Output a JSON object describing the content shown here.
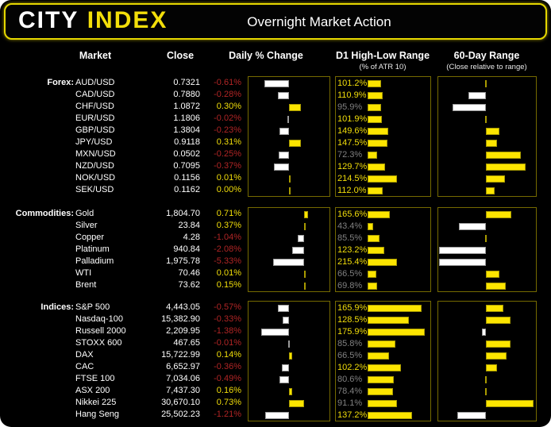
{
  "header": {
    "logo_city": "CITY",
    "logo_index": "INDEX",
    "title": "Overnight Market Action"
  },
  "columns": {
    "market": "Market",
    "close": "Close",
    "daily": "Daily % Change",
    "d1": "D1 High-Low Range",
    "d1_sub": "(% of ATR 10)",
    "r60": "60-Day Range",
    "r60_sub": "(Close relative to range)"
  },
  "colors": {
    "accent_yellow": "#f2de0a",
    "bar_yellow": "#fce500",
    "bar_white": "#ffffff",
    "negative_red": "#b02525",
    "muted_gray": "#808080",
    "panel_border": "#756a00",
    "header_border": "#e5d700"
  },
  "sections": [
    {
      "label": "Forex:",
      "rows": [
        {
          "market": "AUD/USD",
          "close": "0.7321",
          "change": "-0.61%",
          "change_val": -0.61,
          "d1": "101.2%",
          "d1_val": 101.2,
          "r60_val": 51
        },
        {
          "market": "CAD/USD",
          "close": "0.7880",
          "change": "-0.28%",
          "change_val": -0.28,
          "d1": "110.9%",
          "d1_val": 110.9,
          "r60_val": 32
        },
        {
          "market": "CHF/USD",
          "close": "1.0872",
          "change": "0.30%",
          "change_val": 0.3,
          "d1": "95.9%",
          "d1_val": 95.9,
          "r60_val": 15
        },
        {
          "market": "EUR/USD",
          "close": "1.1806",
          "change": "-0.02%",
          "change_val": -0.02,
          "d1": "101.9%",
          "d1_val": 101.9,
          "r60_val": 51
        },
        {
          "market": "GBP/USD",
          "close": "1.3804",
          "change": "-0.23%",
          "change_val": -0.23,
          "d1": "149.6%",
          "d1_val": 149.6,
          "r60_val": 64
        },
        {
          "market": "JPY/USD",
          "close": "0.9118",
          "change": "0.31%",
          "change_val": 0.31,
          "d1": "147.5%",
          "d1_val": 147.5,
          "r60_val": 62
        },
        {
          "market": "MXN/USD",
          "close": "0.0502",
          "change": "-0.25%",
          "change_val": -0.25,
          "d1": "72.3%",
          "d1_val": 72.3,
          "r60_val": 87
        },
        {
          "market": "NZD/USD",
          "close": "0.7095",
          "change": "-0.37%",
          "change_val": -0.37,
          "d1": "129.7%",
          "d1_val": 129.7,
          "r60_val": 92
        },
        {
          "market": "NOK/USD",
          "close": "0.1156",
          "change": "0.01%",
          "change_val": 0.01,
          "d1": "214.5%",
          "d1_val": 214.5,
          "r60_val": 70
        },
        {
          "market": "SEK/USD",
          "close": "0.1162",
          "change": "0.00%",
          "change_val": 0.0,
          "d1": "112.0%",
          "d1_val": 112.0,
          "r60_val": 59
        }
      ]
    },
    {
      "label": "Commodities:",
      "rows": [
        {
          "market": "Gold",
          "close": "1,804.70",
          "change": "0.71%",
          "change_val": 0.71,
          "d1": "165.6%",
          "d1_val": 165.6,
          "r60_val": 77
        },
        {
          "market": "Silver",
          "close": "23.84",
          "change": "0.37%",
          "change_val": 0.37,
          "d1": "43.4%",
          "d1_val": 43.4,
          "r60_val": 22
        },
        {
          "market": "Copper",
          "close": "4.28",
          "change": "-1.04%",
          "change_val": -1.04,
          "d1": "85.5%",
          "d1_val": 85.5,
          "r60_val": 50
        },
        {
          "market": "Platinum",
          "close": "940.84",
          "change": "-2.08%",
          "change_val": -2.08,
          "d1": "123.2%",
          "d1_val": 123.2,
          "r60_val": 1
        },
        {
          "market": "Palladium",
          "close": "1,975.78",
          "change": "-5.33%",
          "change_val": -5.33,
          "d1": "215.4%",
          "d1_val": 215.4,
          "r60_val": 1
        },
        {
          "market": "WTI",
          "close": "70.46",
          "change": "0.01%",
          "change_val": 0.01,
          "d1": "66.5%",
          "d1_val": 66.5,
          "r60_val": 64
        },
        {
          "market": "Brent",
          "close": "73.62",
          "change": "0.15%",
          "change_val": 0.15,
          "d1": "69.8%",
          "d1_val": 69.8,
          "r60_val": 71
        }
      ]
    },
    {
      "label": "Indices:",
      "rows": [
        {
          "market": "S&P 500",
          "close": "4,443.05",
          "change": "-0.57%",
          "change_val": -0.57,
          "d1": "165.9%",
          "d1_val": 165.9,
          "r60_val": 68
        },
        {
          "market": "Nasdaq-100",
          "close": "15,382.90",
          "change": "-0.33%",
          "change_val": -0.33,
          "d1": "128.5%",
          "d1_val": 128.5,
          "r60_val": 76
        },
        {
          "market": "Russell 2000",
          "close": "2,209.95",
          "change": "-1.38%",
          "change_val": -1.38,
          "d1": "175.9%",
          "d1_val": 175.9,
          "r60_val": 46
        },
        {
          "market": "STOXX 600",
          "close": "467.65",
          "change": "-0.01%",
          "change_val": -0.01,
          "d1": "85.8%",
          "d1_val": 85.8,
          "r60_val": 76
        },
        {
          "market": "DAX",
          "close": "15,722.99",
          "change": "0.14%",
          "change_val": 0.14,
          "d1": "66.5%",
          "d1_val": 66.5,
          "r60_val": 72
        },
        {
          "market": "CAC",
          "close": "6,652.97",
          "change": "-0.36%",
          "change_val": -0.36,
          "d1": "102.2%",
          "d1_val": 102.2,
          "r60_val": 62
        },
        {
          "market": "FTSE 100",
          "close": "7,034.06",
          "change": "-0.49%",
          "change_val": -0.49,
          "d1": "80.6%",
          "d1_val": 80.6,
          "r60_val": 50
        },
        {
          "market": "ASX 200",
          "close": "7,437.30",
          "change": "0.16%",
          "change_val": 0.16,
          "d1": "78.4%",
          "d1_val": 78.4,
          "r60_val": 50
        },
        {
          "market": "Nikkei 225",
          "close": "30,670.10",
          "change": "0.73%",
          "change_val": 0.73,
          "d1": "91.1%",
          "d1_val": 91.1,
          "r60_val": 100
        },
        {
          "market": "Hang Seng",
          "close": "25,502.23",
          "change": "-1.21%",
          "change_val": -1.21,
          "d1": "137.2%",
          "d1_val": 137.2,
          "r60_val": 20
        }
      ]
    }
  ],
  "chart_data": [
    {
      "type": "bar",
      "title": "Daily % Change",
      "orientation": "horizontal",
      "unit": "percent",
      "note": "negative bars white (left of zero), positive bars yellow (right of zero)",
      "groups": [
        {
          "section": "Forex",
          "categories": [
            "AUD/USD",
            "CAD/USD",
            "CHF/USD",
            "EUR/USD",
            "GBP/USD",
            "JPY/USD",
            "MXN/USD",
            "NZD/USD",
            "NOK/USD",
            "SEK/USD"
          ],
          "values": [
            -0.61,
            -0.28,
            0.3,
            -0.02,
            -0.23,
            0.31,
            -0.25,
            -0.37,
            0.01,
            0.0
          ]
        },
        {
          "section": "Commodities",
          "categories": [
            "Gold",
            "Silver",
            "Copper",
            "Platinum",
            "Palladium",
            "WTI",
            "Brent"
          ],
          "values": [
            0.71,
            0.37,
            -1.04,
            -2.08,
            -5.33,
            0.01,
            0.15
          ]
        },
        {
          "section": "Indices",
          "categories": [
            "S&P 500",
            "Nasdaq-100",
            "Russell 2000",
            "STOXX 600",
            "DAX",
            "CAC",
            "FTSE 100",
            "ASX 200",
            "Nikkei 225",
            "Hang Seng"
          ],
          "values": [
            -0.57,
            -0.33,
            -1.38,
            -0.01,
            0.14,
            -0.36,
            -0.49,
            0.16,
            0.73,
            -1.21
          ]
        }
      ]
    },
    {
      "type": "bar",
      "title": "D1 High-Low Range (% of ATR 10)",
      "orientation": "horizontal",
      "unit": "percent of ATR10",
      "note": "label text yellow when >= 100%, gray when < 100%; all bars yellow",
      "groups": [
        {
          "section": "Forex",
          "categories": [
            "AUD/USD",
            "CAD/USD",
            "CHF/USD",
            "EUR/USD",
            "GBP/USD",
            "JPY/USD",
            "MXN/USD",
            "NZD/USD",
            "NOK/USD",
            "SEK/USD"
          ],
          "values": [
            101.2,
            110.9,
            95.9,
            101.9,
            149.6,
            147.5,
            72.3,
            129.7,
            214.5,
            112.0
          ]
        },
        {
          "section": "Commodities",
          "categories": [
            "Gold",
            "Silver",
            "Copper",
            "Platinum",
            "Palladium",
            "WTI",
            "Brent"
          ],
          "values": [
            165.6,
            43.4,
            85.5,
            123.2,
            215.4,
            66.5,
            69.8
          ]
        },
        {
          "section": "Indices",
          "categories": [
            "S&P 500",
            "Nasdaq-100",
            "Russell 2000",
            "STOXX 600",
            "DAX",
            "CAC",
            "FTSE 100",
            "ASX 200",
            "Nikkei 225",
            "Hang Seng"
          ],
          "values": [
            165.9,
            128.5,
            175.9,
            85.8,
            66.5,
            102.2,
            80.6,
            78.4,
            91.1,
            137.2
          ]
        }
      ]
    },
    {
      "type": "bar",
      "title": "60-Day Range (Close relative to range)",
      "orientation": "horizontal",
      "unit": "estimated position 0-100 within 60-day range (50 = midpoint)",
      "note": "bars drawn from midpoint; above mid = yellow right bar, below mid = white left bar",
      "groups": [
        {
          "section": "Forex",
          "categories": [
            "AUD/USD",
            "CAD/USD",
            "CHF/USD",
            "EUR/USD",
            "GBP/USD",
            "JPY/USD",
            "MXN/USD",
            "NZD/USD",
            "NOK/USD",
            "SEK/USD"
          ],
          "values": [
            51,
            32,
            15,
            51,
            64,
            62,
            87,
            92,
            70,
            59
          ]
        },
        {
          "section": "Commodities",
          "categories": [
            "Gold",
            "Silver",
            "Copper",
            "Platinum",
            "Palladium",
            "WTI",
            "Brent"
          ],
          "values": [
            77,
            22,
            50,
            1,
            1,
            64,
            71
          ]
        },
        {
          "section": "Indices",
          "categories": [
            "S&P 500",
            "Nasdaq-100",
            "Russell 2000",
            "STOXX 600",
            "DAX",
            "CAC",
            "FTSE 100",
            "ASX 200",
            "Nikkei 225",
            "Hang Seng"
          ],
          "values": [
            68,
            76,
            46,
            76,
            72,
            62,
            50,
            50,
            100,
            20
          ]
        }
      ]
    }
  ]
}
